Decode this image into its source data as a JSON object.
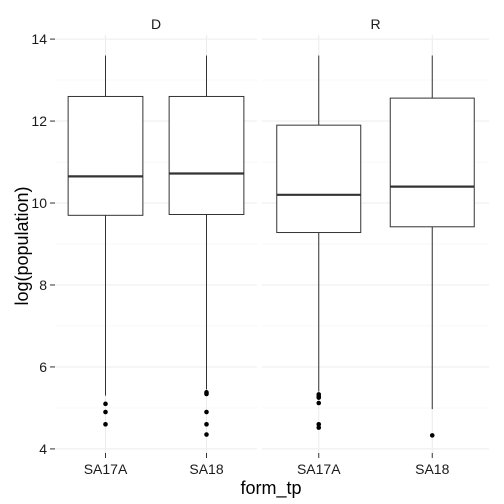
{
  "chart_data": {
    "type": "boxplot",
    "xlabel": "form_tp",
    "ylabel": "log(population)",
    "ylim": [
      3.9,
      14.1
    ],
    "y_ticks": [
      4,
      6,
      8,
      10,
      12,
      14
    ],
    "grid": true,
    "panels": [
      {
        "label": "D",
        "categories": [
          "SA17A",
          "SA18"
        ],
        "boxes": [
          {
            "category": "SA17A",
            "min": 5.3,
            "q1": 9.7,
            "median": 10.65,
            "q3": 12.6,
            "max": 13.6,
            "outliers": [
              5.1,
              4.9,
              4.6
            ]
          },
          {
            "category": "SA18",
            "min": 5.45,
            "q1": 9.72,
            "median": 10.72,
            "q3": 12.6,
            "max": 13.6,
            "outliers": [
              5.38,
              5.34,
              4.9,
              4.6,
              4.35
            ]
          }
        ]
      },
      {
        "label": "R",
        "categories": [
          "SA17A",
          "SA18"
        ],
        "boxes": [
          {
            "category": "SA17A",
            "min": 5.4,
            "q1": 9.28,
            "median": 10.2,
            "q3": 11.9,
            "max": 13.6,
            "outliers": [
              5.33,
              5.28,
              5.25,
              5.12,
              4.6,
              4.52
            ]
          },
          {
            "category": "SA18",
            "min": 4.97,
            "q1": 9.42,
            "median": 10.4,
            "q3": 12.56,
            "max": 13.6,
            "outliers": [
              4.33
            ]
          }
        ]
      }
    ]
  }
}
